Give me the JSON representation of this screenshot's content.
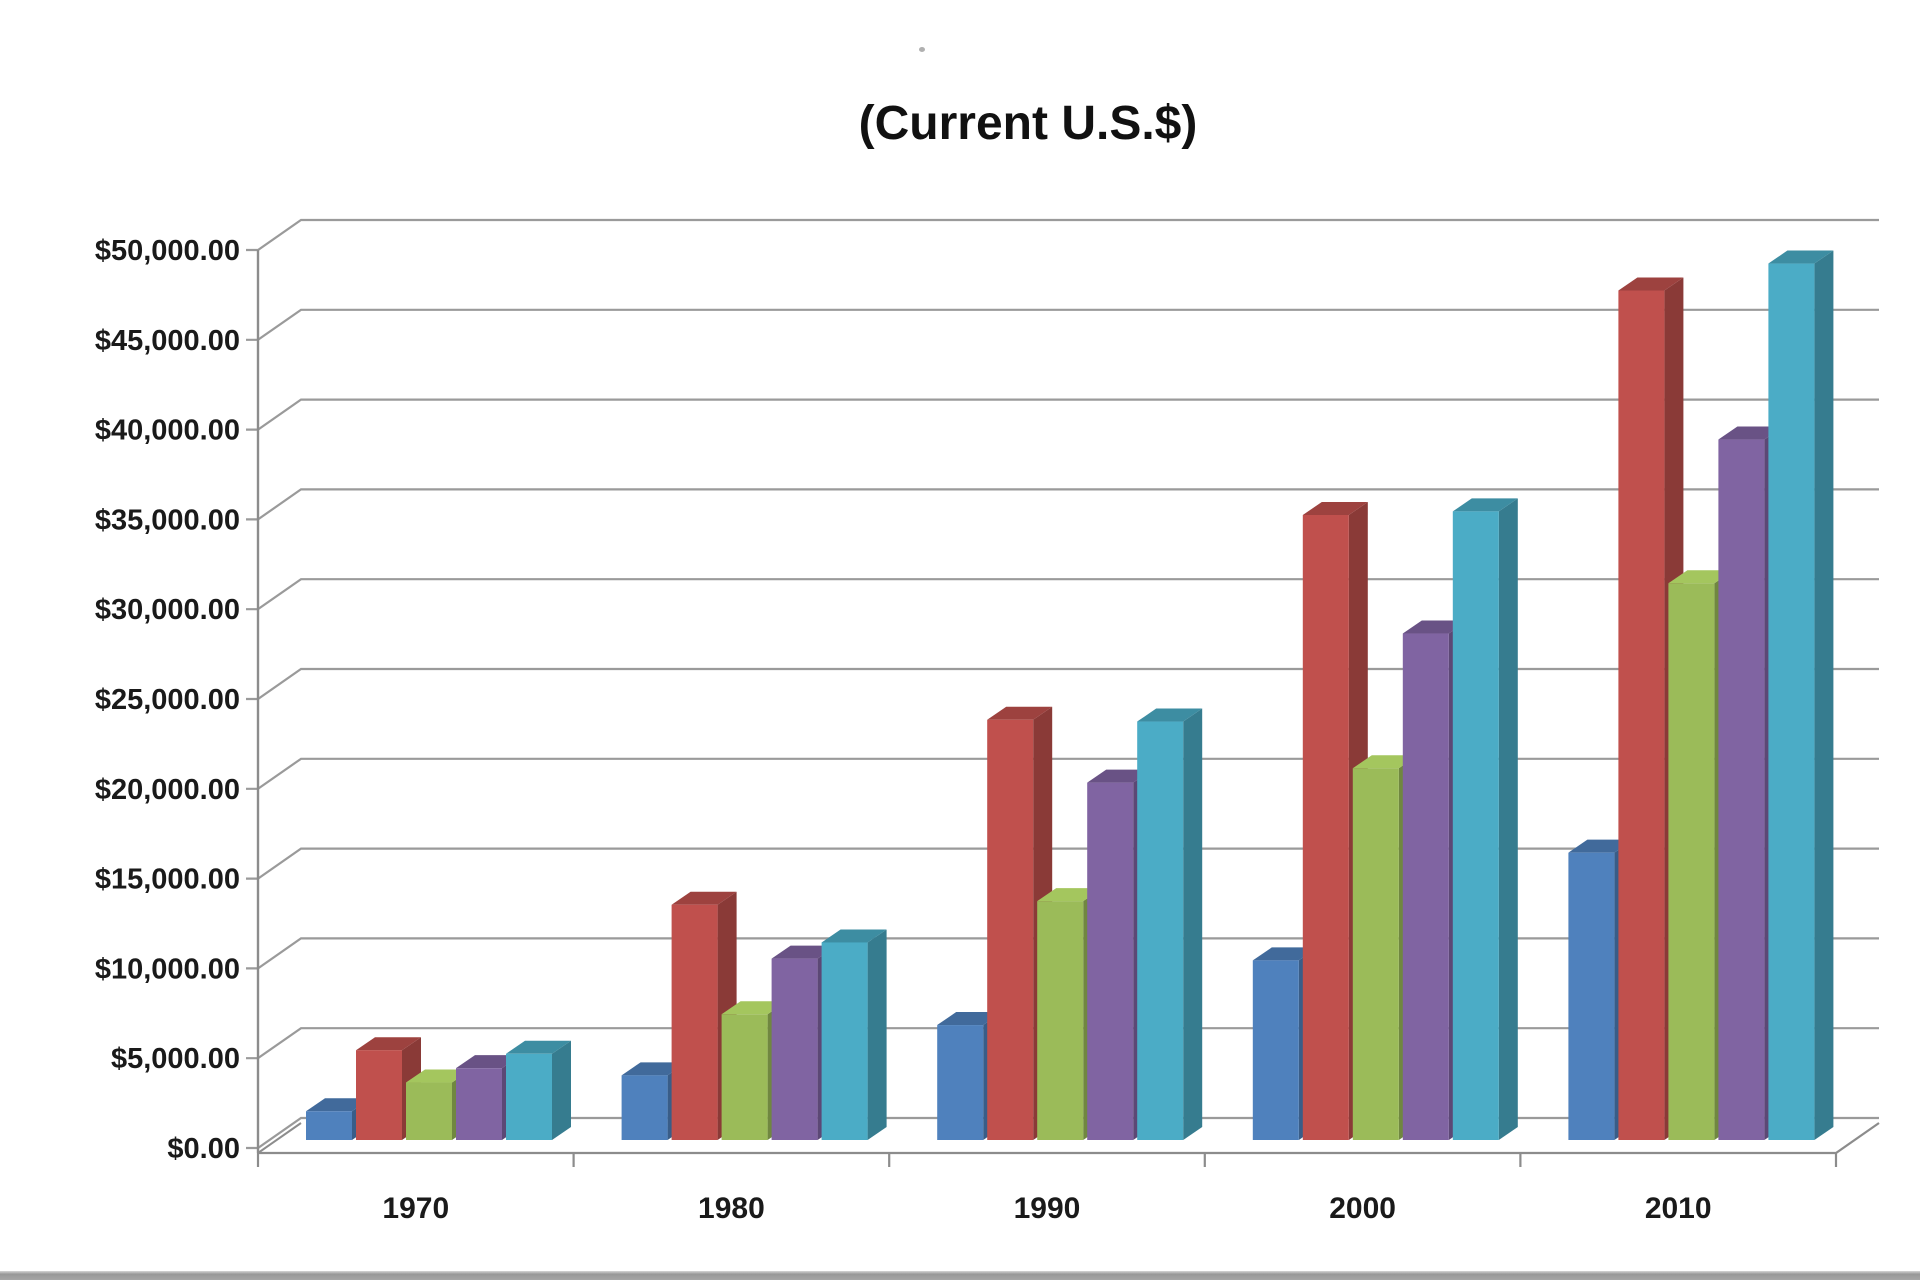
{
  "title": "(Current U.S.$)",
  "chart_data": {
    "type": "bar",
    "subtype": "3d-clustered-column",
    "title": "(Current U.S.$)",
    "categories": [
      "1970",
      "1980",
      "1990",
      "2000",
      "2010"
    ],
    "series": [
      {
        "name": "blue",
        "color": "#4F81BD",
        "values": [
          1600,
          3600,
          6400,
          10000,
          16000
        ]
      },
      {
        "name": "red",
        "color": "#C0504D",
        "values": [
          5000,
          13100,
          23400,
          34800,
          47300
        ]
      },
      {
        "name": "green",
        "color": "#9BBB59",
        "values": [
          3200,
          7000,
          13300,
          20700,
          31000
        ]
      },
      {
        "name": "purple",
        "color": "#8064A2",
        "values": [
          4000,
          10100,
          19900,
          28200,
          39000
        ]
      },
      {
        "name": "cyan",
        "color": "#4BACC6",
        "values": [
          4800,
          11000,
          23300,
          35000,
          48800
        ]
      }
    ],
    "xlabel": "",
    "ylabel": "",
    "ylim": [
      0,
      50000
    ],
    "y_step": 5000,
    "y_tick_labels": [
      "$50,000.00",
      "$45,000.00",
      "$40,000.00",
      "$35,000.00",
      "$30,000.00",
      "$25,000.00",
      "$20,000.00",
      "$15,000.00",
      "$10,000.00",
      "$5,000.00",
      "$0.00"
    ],
    "legend": "none",
    "gridlines": true
  },
  "colors": {
    "grid": "#9a9a9a",
    "axis": "#8c8c8c",
    "text": "#1a1a1a",
    "background": "#ffffff",
    "bottom_bar": "#9b9b9b"
  }
}
